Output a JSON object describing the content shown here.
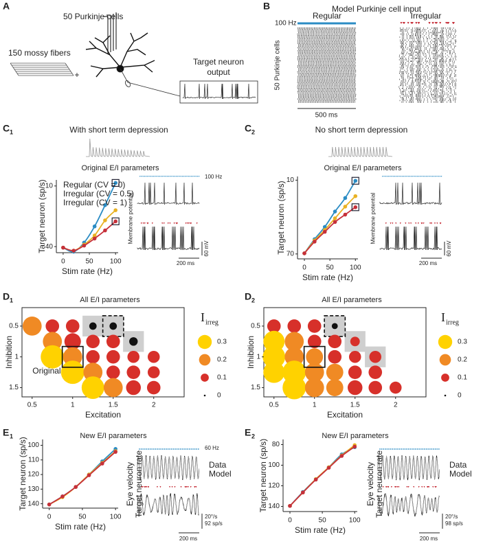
{
  "figure": {
    "A": {
      "label": "A",
      "purkinje": "50 Purkinje cells",
      "mossy": "150 mossy fibers",
      "plus": "+",
      "output_1": "Target neuron",
      "output_2": "output"
    },
    "B": {
      "label": "B",
      "title": "Model Purkinje cell input",
      "rate": "100 Hz",
      "regular": "Regular",
      "irregular": "Irregular",
      "ylabel": "50 Purkinje cells",
      "scale": "500 ms"
    },
    "C1": {
      "label": "C",
      "sub": "1",
      "title": "With short term depression",
      "rate": "100 Hz",
      "trace_label": "Membrane potential",
      "vscale": "60 mV",
      "hscale": "200 ms"
    },
    "C2": {
      "label": "C",
      "sub": "2",
      "title": "No short term depression",
      "trace_label": "Membrane potential",
      "vscale": "60 mV",
      "hscale": "200 ms"
    },
    "D1": {
      "label": "D",
      "sub": "1"
    },
    "D2": {
      "label": "D",
      "sub": "2"
    },
    "E1": {
      "label": "E",
      "sub": "1",
      "rate": "60 Hz",
      "data": "Data",
      "model": "Model",
      "trace_label_1": "Eye velocity",
      "trace_label_2": "Target neuron rate",
      "vscale_1": "20°/s",
      "vscale_2": "92 sp/s",
      "hscale": "200 ms"
    },
    "E2": {
      "label": "E",
      "sub": "2",
      "data": "Data",
      "model": "Model",
      "trace_label_1": "Eye velocity",
      "trace_label_2": "Target neuron rate",
      "vscale_1": "20°/s",
      "vscale_2": "98 sp/s",
      "hscale": "200 ms"
    }
  },
  "chart_data": [
    {
      "type": "line",
      "title": "Original E/I parameters",
      "xlabel": "Stim rate (Hz)",
      "ylabel": "Target neuron (sp/s)",
      "x": [
        0,
        20,
        40,
        60,
        80,
        100
      ],
      "xlim": [
        -13,
        105
      ],
      "ylim": [
        43,
        7
      ],
      "xticks": [
        0,
        50,
        100
      ],
      "yticks": [
        10,
        40
      ],
      "legend": "upper left",
      "series": [
        {
          "name": "Regular (CV = 0)",
          "color": "#2b8cc4",
          "values": [
            40.5,
            42.5,
            38,
            30,
            19.5,
            8.5
          ]
        },
        {
          "name": "Irregular (CV = 0.5)",
          "color": "#e9b224",
          "values": [
            40.5,
            42,
            39,
            34.5,
            27,
            22
          ]
        },
        {
          "name": "Irregular (CV = 1)",
          "color": "#c6303a",
          "values": [
            40.5,
            42,
            39.5,
            36,
            32,
            27.5
          ]
        }
      ]
    },
    {
      "type": "line",
      "title": "Original E/I parameters",
      "xlabel": "Stim rate (Hz)",
      "ylabel": "Target neuron (sp/s)",
      "x": [
        0,
        20,
        40,
        60,
        80,
        100
      ],
      "xlim": [
        -13.5,
        105
      ],
      "ylim": [
        74,
        7
      ],
      "xticks": [
        0,
        50,
        100
      ],
      "yticks": [
        10,
        70
      ],
      "series": [
        {
          "color": "#2b8cc4",
          "values": [
            69.5,
            58,
            48,
            35.5,
            24.5,
            10.5
          ]
        },
        {
          "color": "#e9b224",
          "values": [
            69.5,
            59,
            50.5,
            41,
            31.5,
            23
          ]
        },
        {
          "color": "#c6303a",
          "values": [
            69.5,
            60,
            52,
            44,
            38,
            32
          ]
        }
      ]
    },
    {
      "type": "bubble",
      "title": "All E/I parameters",
      "xlabel": "Excitation",
      "ylabel": "Inhibition",
      "xlim": [
        0.375,
        2.375
      ],
      "ylim": [
        1.65,
        0.2
      ],
      "xticks": [
        0.5,
        1,
        1.5,
        2
      ],
      "yticks": [
        0.5,
        1,
        1.5
      ],
      "x": [
        0.5,
        0.75,
        1,
        1.25,
        1.5,
        0.75,
        1,
        1.25,
        1.5,
        1.75,
        0.75,
        1,
        1.25,
        1.5,
        1.75,
        2,
        1,
        1.25,
        1.5,
        1.75,
        2,
        1.25,
        1.5,
        1.75,
        2
      ],
      "y": [
        0.5,
        0.5,
        0.5,
        0.5,
        0.5,
        0.75,
        0.75,
        0.75,
        0.75,
        0.75,
        1,
        1,
        1,
        1,
        1,
        1,
        1.25,
        1.25,
        1.25,
        1.25,
        1.25,
        1.5,
        1.5,
        1.5,
        1.5
      ],
      "values": [
        0.2,
        0.1,
        0.1,
        0.03,
        0.03,
        0.2,
        0.15,
        0.1,
        0.1,
        0.04,
        0.3,
        0.2,
        0.1,
        0.1,
        0.08,
        0.08,
        0.3,
        0.2,
        0.1,
        0.1,
        0.08,
        0.28,
        0.2,
        0.12,
        0.1
      ],
      "legend_title": "I",
      "legend_subscript": "irreg",
      "legend_values": [
        0.3,
        0.2,
        0.1,
        0
      ],
      "legend_colors": [
        "#ffd200",
        "#f08a24",
        "#d7302a",
        "#111111"
      ],
      "grey_boxes": {
        "x": [
          1.25,
          1.75
        ],
        "y": [
          0.5,
          0.75
        ]
      },
      "dashed_box": {
        "x": 1.5,
        "y": 0.5
      },
      "original_box": {
        "x": 1,
        "y": 1,
        "label": "Original"
      }
    },
    {
      "type": "bubble",
      "title": "All E/I parameters",
      "xlabel": "Excitation",
      "ylabel": "Inhibition",
      "xlim": [
        0.375,
        2.375
      ],
      "ylim": [
        1.65,
        0.2
      ],
      "xticks": [
        0.5,
        1,
        1.5,
        2
      ],
      "yticks": [
        0.5,
        1,
        1.5
      ],
      "x": [
        0.5,
        0.75,
        1,
        1.25,
        0.5,
        0.75,
        1,
        1.25,
        1.5,
        0.5,
        0.75,
        1,
        1.25,
        1.5,
        1.75,
        0.5,
        0.75,
        1,
        1.25,
        1.5,
        1.75,
        0.75,
        1,
        1.25,
        1.5,
        1.75,
        2
      ],
      "y": [
        0.5,
        0.5,
        0.5,
        0.5,
        0.75,
        0.75,
        0.75,
        0.75,
        0.75,
        1,
        1,
        1,
        1,
        1,
        1,
        1.25,
        1.25,
        1.25,
        1.25,
        1.25,
        1.25,
        1.5,
        1.5,
        1.5,
        1.5,
        1.5,
        1.5
      ],
      "values": [
        0.1,
        0.1,
        0.1,
        0.02,
        0.25,
        0.2,
        0.1,
        0.1,
        0.05,
        0.28,
        0.2,
        0.16,
        0.1,
        0.08,
        0.08,
        0.25,
        0.3,
        0.2,
        0.16,
        0.1,
        0.1,
        0.3,
        0.2,
        0.16,
        0.12,
        0.1,
        0.08
      ],
      "legend_title": "I",
      "legend_subscript": "irreg",
      "legend_values": [
        0.3,
        0.2,
        0.1,
        0
      ],
      "legend_colors": [
        "#ffd200",
        "#f08a24",
        "#d7302a",
        "#111111"
      ],
      "grey_boxes": {
        "x": [
          1.5,
          1.75
        ],
        "y": [
          0.75,
          1
        ]
      },
      "dashed_box": {
        "x": 1.25,
        "y": 0.5
      },
      "original_box": {
        "x": 1,
        "y": 1
      }
    },
    {
      "type": "line",
      "title": "New E/I parameters",
      "xlabel": "Stim rate (Hz)",
      "ylabel": "Target neuron (sp/s)",
      "x": [
        0,
        20,
        40,
        60,
        80,
        100
      ],
      "xlim": [
        -10,
        104
      ],
      "ylim": [
        143,
        96
      ],
      "xticks": [
        0,
        50,
        100
      ],
      "yticks": [
        100,
        110,
        120,
        130,
        140
      ],
      "series": [
        {
          "color": "#2b8cc4",
          "values": [
            140.5,
            135,
            128.5,
            120,
            111,
            102.5
          ]
        },
        {
          "color": "#e9b224",
          "values": [
            140.5,
            135.5,
            128.5,
            120,
            112,
            104
          ]
        },
        {
          "color": "#c6303a",
          "values": [
            140.5,
            135,
            128.5,
            120.5,
            112.5,
            104.5
          ]
        }
      ]
    },
    {
      "type": "line",
      "title": "New E/I parameters",
      "xlabel": "Stim rate (Hz)",
      "ylabel": "Target neuron (sp/s)",
      "x": [
        0,
        20,
        40,
        60,
        80,
        100
      ],
      "xlim": [
        -10.6,
        104
      ],
      "ylim": [
        145,
        75
      ],
      "xticks": [
        0,
        50,
        100
      ],
      "yticks": [
        80,
        100,
        120,
        140
      ],
      "series": [
        {
          "color": "#2b8cc4",
          "values": [
            139.5,
            126,
            113.5,
            102,
            89.5,
            82.5
          ]
        },
        {
          "color": "#e9b224",
          "values": [
            139.5,
            126.5,
            113.5,
            102,
            90.5,
            80.5
          ]
        },
        {
          "color": "#c6303a",
          "values": [
            139.5,
            126.5,
            114,
            102.5,
            91,
            82
          ]
        }
      ]
    }
  ]
}
